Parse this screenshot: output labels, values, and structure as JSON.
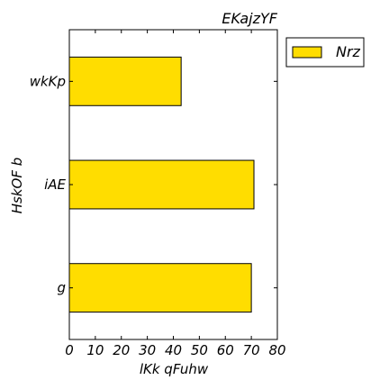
{
  "chart_data": {
    "type": "bar",
    "orientation": "horizontal",
    "title": "EKajzYF",
    "xlabel": "lKk qFuhw",
    "ylabel": "HskOF b",
    "categories": [
      "wkKp",
      "iAE",
      "g"
    ],
    "series": [
      {
        "name": "Nrz",
        "values": [
          43,
          71,
          70
        ],
        "color": "#FFDD00"
      }
    ],
    "xlim": [
      0,
      80
    ],
    "xticks": [
      0,
      10,
      20,
      30,
      40,
      50,
      60,
      70,
      80
    ],
    "grid": false,
    "legend_position": "outside-right"
  }
}
